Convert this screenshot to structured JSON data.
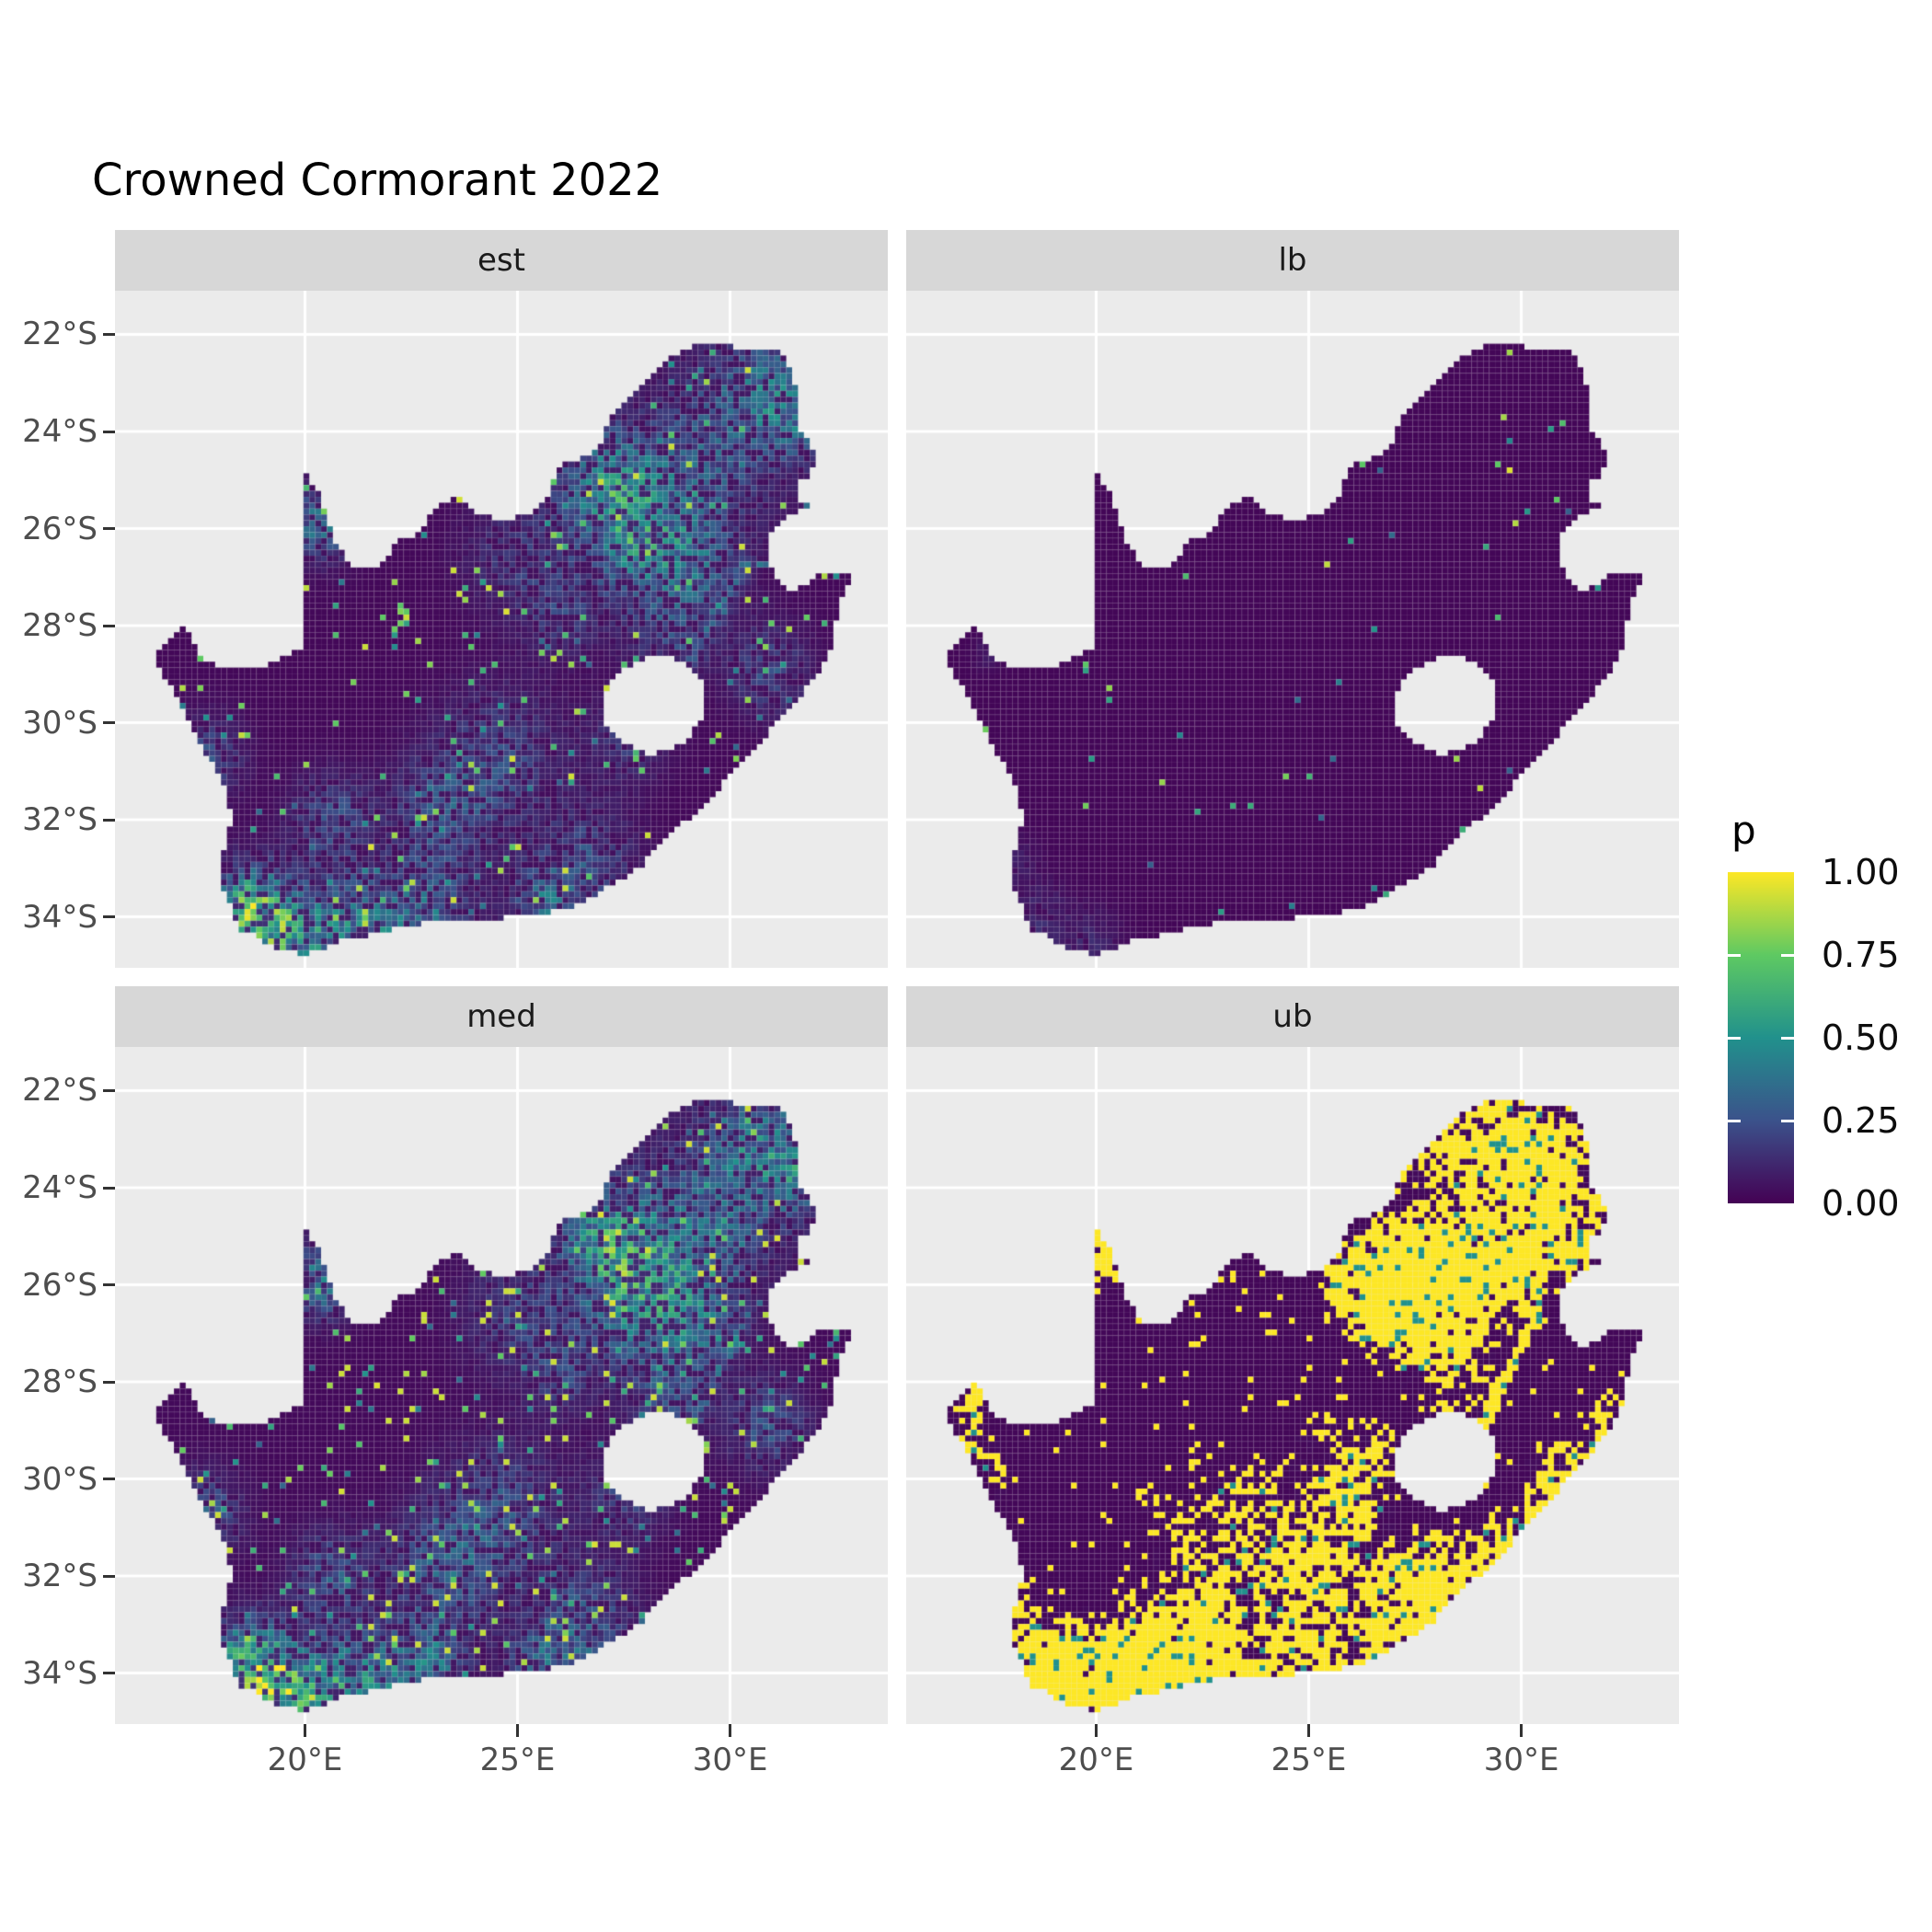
{
  "chart_data": {
    "type": "heatmap",
    "title": "Crowned Cormorant 2022",
    "region": "South Africa raster map, faceted by posterior summary",
    "facets": [
      {
        "label": "est",
        "grid_pos": [
          0,
          0
        ]
      },
      {
        "label": "lb",
        "grid_pos": [
          0,
          1
        ]
      },
      {
        "label": "med",
        "grid_pos": [
          1,
          0
        ]
      },
      {
        "label": "ub",
        "grid_pos": [
          1,
          1
        ]
      }
    ],
    "x_axis": {
      "tick_labels": [
        "20°E",
        "25°E",
        "30°E"
      ],
      "tick_values": [
        20,
        25,
        30
      ],
      "range_lon": [
        15.53,
        33.71
      ]
    },
    "y_axis": {
      "tick_labels": [
        "22°S",
        "24°S",
        "26°S",
        "28°S",
        "30°S",
        "32°S",
        "34°S"
      ],
      "tick_values": [
        -22,
        -24,
        -26,
        -28,
        -30,
        -32,
        -34
      ],
      "range_lat": [
        -21.1,
        -35.05
      ]
    },
    "legend": {
      "title": "p",
      "labels": [
        "1.00",
        "0.75",
        "0.50",
        "0.25",
        "0.00"
      ],
      "breaks": [
        1.0,
        0.75,
        0.5,
        0.25,
        0.0
      ]
    },
    "colormap": {
      "name": "viridis",
      "stops": [
        [
          0,
          "#440154"
        ],
        [
          0.25,
          "#3b528b"
        ],
        [
          0.5,
          "#21918c"
        ],
        [
          0.75,
          "#5ec962"
        ],
        [
          1,
          "#fde725"
        ]
      ]
    },
    "map_outline": [
      [
        16.45,
        -28.6
      ],
      [
        16.8,
        -28.25
      ],
      [
        17.1,
        -28.03
      ],
      [
        17.38,
        -28.3
      ],
      [
        17.48,
        -28.62
      ],
      [
        18.05,
        -28.85
      ],
      [
        18.75,
        -28.88
      ],
      [
        19.4,
        -28.72
      ],
      [
        19.98,
        -28.43
      ],
      [
        20.0,
        -24.85
      ],
      [
        20.38,
        -25.35
      ],
      [
        20.68,
        -26.2
      ],
      [
        21.05,
        -26.73
      ],
      [
        21.75,
        -26.83
      ],
      [
        22.2,
        -26.25
      ],
      [
        22.7,
        -26.08
      ],
      [
        23.05,
        -25.6
      ],
      [
        23.55,
        -25.33
      ],
      [
        24.15,
        -25.75
      ],
      [
        24.9,
        -25.8
      ],
      [
        25.4,
        -25.63
      ],
      [
        25.68,
        -25.45
      ],
      [
        25.92,
        -24.72
      ],
      [
        26.48,
        -24.58
      ],
      [
        26.92,
        -24.28
      ],
      [
        27.22,
        -23.62
      ],
      [
        27.78,
        -23.22
      ],
      [
        28.28,
        -22.66
      ],
      [
        28.94,
        -22.28
      ],
      [
        29.4,
        -22.16
      ],
      [
        29.8,
        -22.2
      ],
      [
        30.35,
        -22.32
      ],
      [
        31.05,
        -22.34
      ],
      [
        31.3,
        -22.42
      ],
      [
        31.56,
        -23.1
      ],
      [
        31.64,
        -23.95
      ],
      [
        32.0,
        -24.4
      ],
      [
        31.92,
        -24.95
      ],
      [
        31.58,
        -25.05
      ],
      [
        31.65,
        -25.45
      ],
      [
        31.96,
        -25.5
      ],
      [
        31.35,
        -25.78
      ],
      [
        30.95,
        -26.15
      ],
      [
        30.88,
        -26.65
      ],
      [
        31.08,
        -27.08
      ],
      [
        31.45,
        -27.32
      ],
      [
        31.98,
        -27.05
      ],
      [
        32.12,
        -26.88
      ],
      [
        32.89,
        -26.86
      ],
      [
        32.55,
        -27.6
      ],
      [
        32.4,
        -28.45
      ],
      [
        31.95,
        -29.15
      ],
      [
        31.3,
        -29.75
      ],
      [
        30.65,
        -30.5
      ],
      [
        29.95,
        -31.15
      ],
      [
        29.25,
        -31.8
      ],
      [
        28.55,
        -32.35
      ],
      [
        27.85,
        -33.0
      ],
      [
        27.1,
        -33.4
      ],
      [
        26.4,
        -33.75
      ],
      [
        25.65,
        -33.95
      ],
      [
        25.0,
        -34.0
      ],
      [
        24.2,
        -34.05
      ],
      [
        23.4,
        -34.1
      ],
      [
        22.55,
        -34.15
      ],
      [
        21.75,
        -34.35
      ],
      [
        20.95,
        -34.45
      ],
      [
        20.0,
        -34.8
      ],
      [
        19.3,
        -34.62
      ],
      [
        18.8,
        -34.38
      ],
      [
        18.45,
        -34.3
      ],
      [
        18.3,
        -33.9
      ],
      [
        17.98,
        -33.15
      ],
      [
        18.05,
        -32.7
      ],
      [
        18.28,
        -32.05
      ],
      [
        18.15,
        -31.4
      ],
      [
        17.65,
        -30.6
      ],
      [
        17.2,
        -29.85
      ],
      [
        16.8,
        -29.2
      ],
      [
        16.48,
        -28.8
      ]
    ],
    "map_holes": [
      [
        [
          26.95,
          -29.6
        ],
        [
          27.3,
          -29.05
        ],
        [
          27.85,
          -28.7
        ],
        [
          28.45,
          -28.6
        ],
        [
          29.1,
          -28.85
        ],
        [
          29.45,
          -29.3
        ],
        [
          29.35,
          -29.95
        ],
        [
          28.85,
          -30.45
        ],
        [
          28.15,
          -30.68
        ],
        [
          27.45,
          -30.42
        ],
        [
          27.05,
          -30.0
        ]
      ]
    ],
    "fields": {
      "est": {
        "mode": "continuous",
        "base": 0.02,
        "speck_p": 0.03,
        "yellow_p": 0.004,
        "hotspots": [
          [
            28.0,
            -26.2,
            1.4,
            0.55
          ],
          [
            29.6,
            -24.4,
            1.6,
            0.32
          ],
          [
            30.9,
            -23.0,
            1.2,
            0.38
          ],
          [
            31.7,
            -23.8,
            0.8,
            0.3
          ],
          [
            28.6,
            -28.3,
            0.9,
            0.22
          ],
          [
            30.9,
            -28.9,
            0.9,
            0.28
          ],
          [
            24.6,
            -30.7,
            1.4,
            0.26
          ],
          [
            23.2,
            -31.9,
            1.2,
            0.3
          ],
          [
            26.6,
            -32.9,
            1.1,
            0.3
          ],
          [
            25.6,
            -33.8,
            0.8,
            0.38
          ],
          [
            22.9,
            -34.0,
            1.0,
            0.42
          ],
          [
            21.2,
            -34.3,
            1.1,
            0.55
          ],
          [
            19.6,
            -34.4,
            0.9,
            0.6
          ],
          [
            18.7,
            -33.9,
            0.9,
            0.85
          ],
          [
            20.4,
            -25.9,
            0.7,
            0.5
          ],
          [
            17.7,
            -30.7,
            0.8,
            0.3
          ],
          [
            20.6,
            -32.0,
            0.9,
            0.3
          ],
          [
            27.6,
            -30.3,
            0.9,
            0.22
          ],
          [
            29.3,
            -26.9,
            0.9,
            0.25
          ],
          [
            26.0,
            -27.8,
            0.8,
            0.2
          ],
          [
            26.9,
            -24.7,
            1.2,
            0.25
          ],
          [
            25.0,
            -26.6,
            1.2,
            0.2
          ],
          [
            27.3,
            -25.3,
            1.0,
            0.3
          ]
        ],
        "line": [
          30.4,
          -26.7,
          29.0,
          -29.0,
          0.3,
          0.14
        ]
      },
      "lb": {
        "mode": "continuous",
        "base": 0.015,
        "speck_p": 0.006,
        "yellow_p": 0.0,
        "hotspots": [
          [
            18.6,
            -34.1,
            0.8,
            0.14
          ],
          [
            19.9,
            -34.55,
            0.7,
            0.12
          ],
          [
            17.4,
            -28.6,
            0.3,
            0.1
          ],
          [
            18.1,
            -32.8,
            0.5,
            0.08
          ]
        ],
        "line": null
      },
      "med": {
        "mode": "continuous",
        "base": 0.025,
        "speck_p": 0.045,
        "yellow_p": 0.012,
        "hotspots": [
          [
            28.0,
            -26.2,
            1.4,
            0.62
          ],
          [
            29.6,
            -24.4,
            1.6,
            0.37
          ],
          [
            30.9,
            -23.0,
            1.2,
            0.43
          ],
          [
            31.7,
            -23.8,
            0.8,
            0.34
          ],
          [
            28.6,
            -28.3,
            0.9,
            0.25
          ],
          [
            30.9,
            -28.9,
            0.9,
            0.32
          ],
          [
            24.6,
            -30.7,
            1.4,
            0.3
          ],
          [
            23.2,
            -31.9,
            1.2,
            0.35
          ],
          [
            26.6,
            -32.9,
            1.1,
            0.34
          ],
          [
            25.6,
            -33.8,
            0.8,
            0.43
          ],
          [
            22.9,
            -34.0,
            1.0,
            0.48
          ],
          [
            21.2,
            -34.3,
            1.1,
            0.62
          ],
          [
            19.6,
            -34.4,
            0.9,
            0.68
          ],
          [
            18.7,
            -33.9,
            0.9,
            0.95
          ],
          [
            20.4,
            -25.9,
            0.7,
            0.56
          ],
          [
            17.7,
            -30.7,
            0.8,
            0.34
          ],
          [
            20.6,
            -32.0,
            0.9,
            0.34
          ],
          [
            27.6,
            -30.3,
            0.9,
            0.25
          ],
          [
            29.3,
            -26.9,
            0.9,
            0.28
          ],
          [
            26.0,
            -27.8,
            0.8,
            0.23
          ],
          [
            26.9,
            -24.7,
            1.2,
            0.28
          ],
          [
            25.0,
            -26.6,
            1.2,
            0.23
          ],
          [
            27.3,
            -25.3,
            1.0,
            0.34
          ]
        ],
        "line": [
          30.4,
          -26.7,
          29.0,
          -29.0,
          0.3,
          0.14
        ]
      },
      "ub": {
        "mode": "posterize",
        "base": 0.02,
        "speck_p": 0.035,
        "yellow_p": 0.0,
        "hotspots": [
          [
            27.9,
            -26.2,
            1.5,
            1.4
          ],
          [
            26.5,
            -26.5,
            1.0,
            0.7
          ],
          [
            25.8,
            -25.8,
            0.8,
            0.6
          ],
          [
            28.9,
            -25.3,
            1.0,
            0.7
          ],
          [
            29.8,
            -25.9,
            0.9,
            0.6
          ],
          [
            30.5,
            -25.0,
            0.9,
            0.6
          ],
          [
            27.0,
            -25.3,
            0.8,
            0.6
          ],
          [
            29.0,
            -22.8,
            1.2,
            0.8
          ],
          [
            30.0,
            -23.5,
            1.2,
            0.7
          ],
          [
            31.2,
            -23.3,
            1.0,
            0.7
          ],
          [
            27.5,
            -23.3,
            0.9,
            0.5
          ],
          [
            31.0,
            -25.3,
            0.8,
            0.55
          ],
          [
            32.0,
            -24.8,
            0.6,
            0.5
          ],
          [
            20.3,
            -25.3,
            0.8,
            1.2
          ],
          [
            18.7,
            -33.9,
            1.1,
            1.3
          ],
          [
            20.5,
            -34.4,
            1.5,
            1.2
          ],
          [
            22.5,
            -34.2,
            1.3,
            1.0
          ],
          [
            25.0,
            -33.9,
            1.3,
            0.8
          ],
          [
            27.0,
            -33.0,
            1.1,
            0.7
          ],
          [
            28.3,
            -32.5,
            0.9,
            0.7
          ],
          [
            29.8,
            -31.3,
            0.8,
            0.6
          ],
          [
            31.0,
            -30.2,
            0.8,
            0.55
          ],
          [
            31.9,
            -29.2,
            0.7,
            0.5
          ],
          [
            32.3,
            -28.4,
            0.6,
            0.5
          ],
          [
            29.0,
            -31.7,
            1.0,
            0.6
          ],
          [
            30.8,
            -29.9,
            0.9,
            0.6
          ],
          [
            24.0,
            -31.7,
            1.4,
            0.6
          ],
          [
            22.0,
            -32.8,
            1.3,
            0.6
          ],
          [
            26.5,
            -29.5,
            1.2,
            0.5
          ],
          [
            28.6,
            -28.4,
            1.0,
            0.5
          ],
          [
            17.8,
            -30.0,
            0.8,
            0.5
          ],
          [
            21.0,
            -30.0,
            1.0,
            0.4
          ],
          [
            17.3,
            -29.3,
            0.6,
            0.5
          ],
          [
            16.9,
            -28.7,
            0.5,
            0.5
          ],
          [
            17.1,
            -28.1,
            0.4,
            0.8
          ],
          [
            18.2,
            -31.8,
            0.6,
            0.4
          ],
          [
            18.0,
            -32.6,
            0.5,
            0.5
          ],
          [
            23.5,
            -30.3,
            1.0,
            0.5
          ],
          [
            25.5,
            -31.5,
            1.2,
            0.55
          ],
          [
            27.5,
            -31.8,
            1.0,
            0.5
          ],
          [
            26.0,
            -30.2,
            0.8,
            0.45
          ],
          [
            24.8,
            -29.0,
            0.9,
            0.4
          ],
          [
            22.0,
            -31.0,
            0.9,
            0.4
          ]
        ],
        "line": [
          30.4,
          -26.6,
          29.0,
          -29.0,
          0.6,
          0.16
        ]
      }
    }
  },
  "ui": {
    "background": "#ffffff",
    "panel_bg": "#ebebeb",
    "strip_bg": "#d7d7d7",
    "gridline": "#ffffff",
    "axis_text_color": "#4d4d4d",
    "tick_color": "#333333"
  }
}
